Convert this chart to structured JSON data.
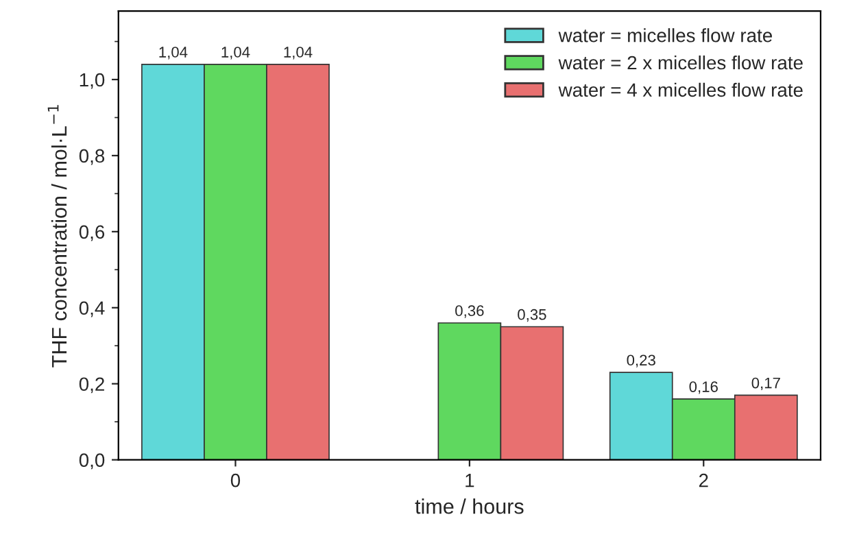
{
  "chart_data": {
    "type": "bar",
    "categories": [
      "0",
      "1",
      "2"
    ],
    "series": [
      {
        "name": "water = micelles flow rate",
        "color": "#5fd8d8",
        "values": [
          1.04,
          null,
          0.23
        ],
        "value_labels": [
          "1,04",
          null,
          "0,23"
        ]
      },
      {
        "name": "water = 2 x micelles flow rate",
        "color": "#5fd85f",
        "values": [
          1.04,
          0.36,
          0.16
        ],
        "value_labels": [
          "1,04",
          "0,36",
          "0,16"
        ]
      },
      {
        "name": "water = 4 x micelles flow rate",
        "color": "#e87070",
        "values": [
          1.04,
          0.35,
          0.17
        ],
        "value_labels": [
          "1,04",
          "0,35",
          "0,17"
        ]
      }
    ],
    "xlabel": "time / hours",
    "ylabel": "THF concentration / mol·L$^{−1}$",
    "ylim": [
      0,
      1.18
    ],
    "yticks": [
      {
        "value": 0,
        "label": "0,0"
      },
      {
        "value": 0.2,
        "label": "0,2"
      },
      {
        "value": 0.4,
        "label": "0,4"
      },
      {
        "value": 0.6,
        "label": "0,6"
      },
      {
        "value": 0.8,
        "label": "0,8"
      },
      {
        "value": 1.0,
        "label": "1,0"
      }
    ],
    "legend": "top right",
    "grid": false
  }
}
